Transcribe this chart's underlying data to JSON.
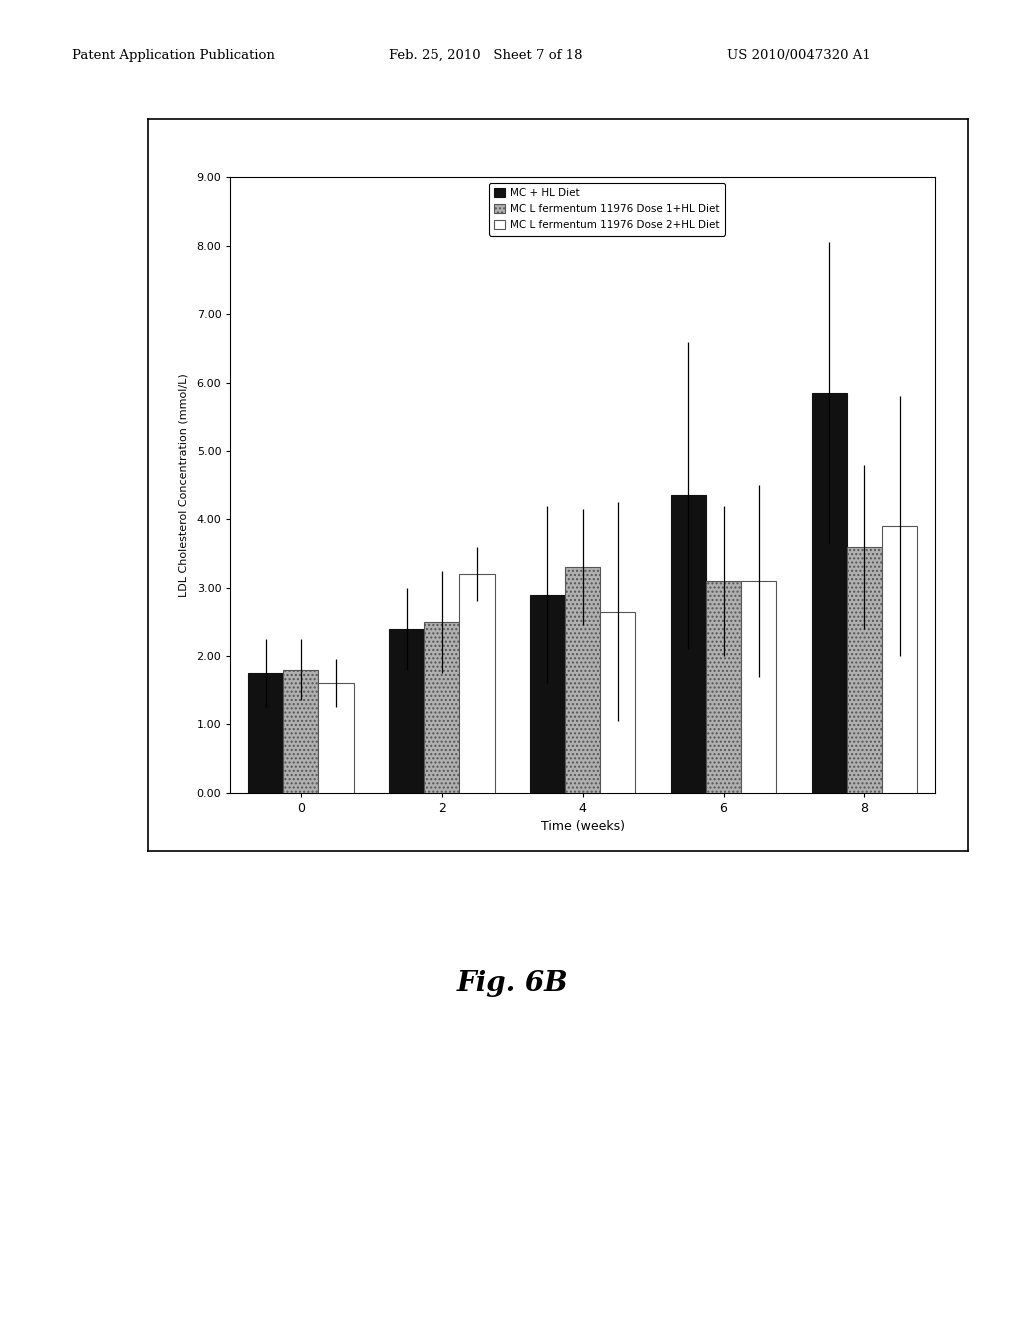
{
  "time_points": [
    0,
    2,
    4,
    6,
    8
  ],
  "series": [
    {
      "label": "MC + HL Diet",
      "values": [
        1.75,
        2.4,
        2.9,
        4.35,
        5.85
      ],
      "errors": [
        0.5,
        0.6,
        1.3,
        2.25,
        2.2
      ],
      "color": "#111111",
      "hatch": null,
      "edgecolor": "#111111"
    },
    {
      "label": "MC L fermentum 11976 Dose 1+HL Diet",
      "values": [
        1.8,
        2.5,
        3.3,
        3.1,
        3.6
      ],
      "errors": [
        0.45,
        0.75,
        0.85,
        1.1,
        1.2
      ],
      "color": "#b0b0b0",
      "hatch": "....",
      "edgecolor": "#555555"
    },
    {
      "label": "MC L fermentum 11976 Dose 2+HL Diet",
      "values": [
        1.6,
        3.2,
        2.65,
        3.1,
        3.9
      ],
      "errors": [
        0.35,
        0.4,
        1.6,
        1.4,
        1.9
      ],
      "color": "#ffffff",
      "hatch": null,
      "edgecolor": "#555555"
    }
  ],
  "xlabel": "Time (weeks)",
  "ylabel": "LDL Cholesterol Concentration (mmol/L)",
  "ylim": [
    0.0,
    9.0
  ],
  "yticks": [
    0.0,
    1.0,
    2.0,
    3.0,
    4.0,
    5.0,
    6.0,
    7.0,
    8.0,
    9.0
  ],
  "ytick_labels": [
    "0.00",
    "1.00",
    "2.00",
    "3.00",
    "4.00",
    "5.00",
    "6.00",
    "7.00",
    "8.00",
    "9.00"
  ],
  "bar_width": 0.25,
  "figure_title": "Fig. 6B",
  "header_left": "Patent Application Publication",
  "header_mid": "Feb. 25, 2010   Sheet 7 of 18",
  "header_right": "US 2010/0047320 A1",
  "page_bg_color": "#ffffff",
  "chart_bg_color": "#ffffff",
  "chart_area_bg": "#f8f8f8"
}
